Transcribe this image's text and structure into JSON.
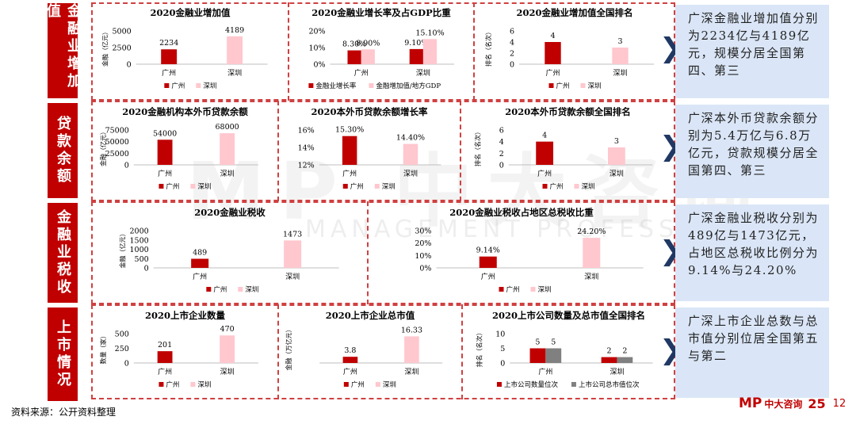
{
  "colors": {
    "accent": "#c00000",
    "guangzhou": "#c00000",
    "shenzhen": "#ffc7ce",
    "rank_value": "#808080",
    "note_bg": "#dae6f7",
    "arrow": "#203864"
  },
  "sections": [
    {
      "label": "金融业增加值"
    },
    {
      "label": "贷款余额"
    },
    {
      "label": "金融业税收"
    },
    {
      "label": "上市情况"
    }
  ],
  "notes": [
    "广深金融业增加值分别为2234亿与4189亿元，规模分居全国第四、第三",
    "广深本外币贷款余额分别为5.4万亿与6.8万亿元，贷款规模分居全国第四、第三",
    "广深金融业税收分别为489亿与1473亿元，占地区总税收比例分为9.14%与24.20%",
    "广深上市企业总数与总市值分别位居全国第五与第二"
  ],
  "arrow_glyph": "❯",
  "watermark": {
    "big": "MP 中大咨询",
    "small": "MANAGEMENT PROFESSIONAL"
  },
  "footer": {
    "source": "资料来源：公开资料整理",
    "logo_mp": "MP",
    "logo_cn": "中大咨询",
    "logo_year": "25",
    "page": "12"
  },
  "chart_data": [
    {
      "type": "bar",
      "title": "2020金融业增加值",
      "categories": [
        "广州",
        "深圳"
      ],
      "ylabel": "金融（亿元）",
      "yticks": [
        0,
        2500,
        5000
      ],
      "ylim": [
        0,
        5000
      ],
      "series": [
        {
          "name": "广州",
          "values": [
            2234,
            null
          ],
          "labels": [
            "2234",
            ""
          ]
        },
        {
          "name": "深圳",
          "values": [
            null,
            4189
          ],
          "labels": [
            "",
            "4189"
          ]
        }
      ],
      "legend": [
        "广州",
        "深圳"
      ]
    },
    {
      "type": "bar",
      "title": "2020金融业增长率及占GDP比重",
      "categories": [
        "广州",
        "深圳"
      ],
      "ylabel": "",
      "yticks": [
        "0%",
        "10%",
        "20%"
      ],
      "ylim": [
        0,
        20
      ],
      "series": [
        {
          "name": "金融业增长率",
          "values": [
            8.3,
            9.1
          ],
          "labels": [
            "8.30%",
            "9.10%"
          ]
        },
        {
          "name": "金融增加值/地方GDP",
          "values": [
            8.9,
            15.1
          ],
          "labels": [
            "8.90%",
            "15.10%"
          ]
        }
      ],
      "legend": [
        "金融业增长率",
        "金融增加值/地方GDP"
      ]
    },
    {
      "type": "bar",
      "title": "2020金融业增加值全国排名",
      "categories": [
        "广州",
        "深圳"
      ],
      "ylabel": "排名（名次）",
      "yticks": [
        0,
        2,
        4,
        6
      ],
      "ylim": [
        0,
        6
      ],
      "series": [
        {
          "name": "广州",
          "values": [
            4,
            null
          ],
          "labels": [
            "4",
            ""
          ]
        },
        {
          "name": "深圳",
          "values": [
            null,
            3
          ],
          "labels": [
            "",
            "3"
          ]
        }
      ],
      "legend": [
        "广州",
        "深圳"
      ]
    },
    {
      "type": "bar",
      "title": "2020金融机构本外币贷款余额",
      "categories": [
        "广州",
        "深圳"
      ],
      "ylabel": "金融（亿元）",
      "yticks": [
        0,
        25000,
        50000,
        75000
      ],
      "ylim": [
        0,
        75000
      ],
      "series": [
        {
          "name": "广州",
          "values": [
            54000,
            null
          ],
          "labels": [
            "54000",
            ""
          ]
        },
        {
          "name": "深圳",
          "values": [
            null,
            68000
          ],
          "labels": [
            "",
            "68000"
          ]
        }
      ],
      "legend": [
        "广州",
        "深圳"
      ]
    },
    {
      "type": "bar",
      "title": "2020本外币贷款余额增长率",
      "categories": [
        "广州",
        "深圳"
      ],
      "ylabel": "",
      "yticks": [
        "12%",
        "14%",
        "16%"
      ],
      "ylim": [
        12,
        16
      ],
      "series": [
        {
          "name": "广州",
          "values": [
            15.3,
            null
          ],
          "labels": [
            "15.30%",
            ""
          ]
        },
        {
          "name": "深圳",
          "values": [
            null,
            14.4
          ],
          "labels": [
            "",
            "14.40%"
          ]
        }
      ],
      "legend": [
        "广州",
        "深圳"
      ]
    },
    {
      "type": "bar",
      "title": "2020本外币贷款余额全国排名",
      "categories": [
        "广州",
        "深圳"
      ],
      "ylabel": "排名（名次）",
      "yticks": [
        0,
        2,
        4,
        6
      ],
      "ylim": [
        0,
        6
      ],
      "series": [
        {
          "name": "广州",
          "values": [
            4,
            null
          ],
          "labels": [
            "4",
            ""
          ]
        },
        {
          "name": "深圳",
          "values": [
            null,
            3
          ],
          "labels": [
            "",
            "3"
          ]
        }
      ],
      "legend": [
        "广州",
        "深圳"
      ]
    },
    {
      "type": "bar",
      "title": "2020金融业税收",
      "categories": [
        "广州",
        "深圳"
      ],
      "ylabel": "金融（亿元）",
      "yticks": [
        0,
        500,
        1000,
        1500,
        2000
      ],
      "ylim": [
        0,
        2000
      ],
      "series": [
        {
          "name": "广州",
          "values": [
            489,
            null
          ],
          "labels": [
            "489",
            ""
          ]
        },
        {
          "name": "深圳",
          "values": [
            null,
            1473
          ],
          "labels": [
            "",
            "1473"
          ]
        }
      ],
      "legend": [
        "广州",
        "深圳"
      ]
    },
    {
      "type": "bar",
      "title": "2020金融业税收占地区总税收比重",
      "categories": [
        "广州",
        "深圳"
      ],
      "ylabel": "",
      "yticks": [
        "0%",
        "10%",
        "20%",
        "30%"
      ],
      "ylim": [
        0,
        30
      ],
      "series": [
        {
          "name": "广州",
          "values": [
            9.14,
            null
          ],
          "labels": [
            "9.14%",
            ""
          ]
        },
        {
          "name": "深圳",
          "values": [
            null,
            24.2
          ],
          "labels": [
            "",
            "24.20%"
          ]
        }
      ],
      "legend": [
        "广州",
        "深圳"
      ]
    },
    {
      "type": "bar",
      "title": "2020上市企业数量",
      "categories": [
        "广州",
        "深圳"
      ],
      "ylabel": "数量（家）",
      "yticks": [
        0,
        250,
        500
      ],
      "ylim": [
        0,
        500
      ],
      "series": [
        {
          "name": "广州",
          "values": [
            201,
            null
          ],
          "labels": [
            "201",
            ""
          ]
        },
        {
          "name": "深圳",
          "values": [
            null,
            470
          ],
          "labels": [
            "",
            "470"
          ]
        }
      ],
      "legend": [
        "广州",
        "深圳"
      ]
    },
    {
      "type": "bar",
      "title": "2020上市企业总市值",
      "categories": [
        "广州",
        "深圳"
      ],
      "ylabel": "金融（万亿元）",
      "yticks": [],
      "ylim": [
        0,
        18
      ],
      "series": [
        {
          "name": "广州",
          "values": [
            3.8,
            null
          ],
          "labels": [
            "3.8",
            ""
          ]
        },
        {
          "name": "深圳",
          "values": [
            null,
            16.33
          ],
          "labels": [
            "",
            "16.33"
          ]
        }
      ],
      "legend": [
        "广州",
        "深圳"
      ]
    },
    {
      "type": "bar",
      "title": "2020上市公司数量及总市值全国排名",
      "categories": [
        "广州",
        "深圳"
      ],
      "ylabel": "排名（名次）",
      "yticks": [
        0,
        5,
        10
      ],
      "ylim": [
        0,
        10
      ],
      "series": [
        {
          "name": "上市公司数量位次",
          "values": [
            5,
            2
          ],
          "labels": [
            "5",
            "2"
          ]
        },
        {
          "name": "上市公司总市值位次",
          "values": [
            5,
            2
          ],
          "labels": [
            "5",
            "2"
          ]
        }
      ],
      "legend": [
        "上市公司数量位次",
        "上市公司总市值位次"
      ]
    }
  ]
}
